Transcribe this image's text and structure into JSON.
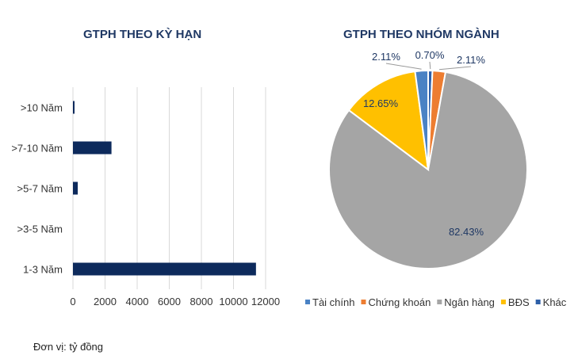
{
  "unit_note": "Đơn vị: tỷ đồng",
  "chart_data": [
    {
      "type": "bar",
      "orientation": "horizontal",
      "title": "GTPH THEO KỲ HẠN",
      "categories": [
        ">10 Năm",
        ">7-10 Năm",
        ">5-7 Năm",
        ">3-5 Năm",
        "1-3 Năm"
      ],
      "values": [
        90,
        2400,
        300,
        0,
        11400
      ],
      "xlim": [
        0,
        12000
      ],
      "xticks": [
        0,
        2000,
        4000,
        6000,
        8000,
        10000,
        12000
      ],
      "grid": "vertical",
      "color": "#0d2a5c"
    },
    {
      "type": "pie",
      "title": "GTPH THEO NHÓM NGÀNH",
      "slices": [
        {
          "name": "Tài chính",
          "value": 2.11,
          "label": "2.11%",
          "color": "#4a82c4"
        },
        {
          "name": "Chứng khoán",
          "value": 2.11,
          "label": "2.11%",
          "color": "#ed7d31"
        },
        {
          "name": "Ngân hàng",
          "value": 82.43,
          "label": "82.43%",
          "color": "#a5a5a5"
        },
        {
          "name": "BĐS",
          "value": 12.65,
          "label": "12.65%",
          "color": "#ffc000"
        },
        {
          "name": "Khác",
          "value": 0.7,
          "label": "0.70%",
          "color": "#2e5fa8"
        }
      ],
      "legend_position": "bottom"
    }
  ]
}
